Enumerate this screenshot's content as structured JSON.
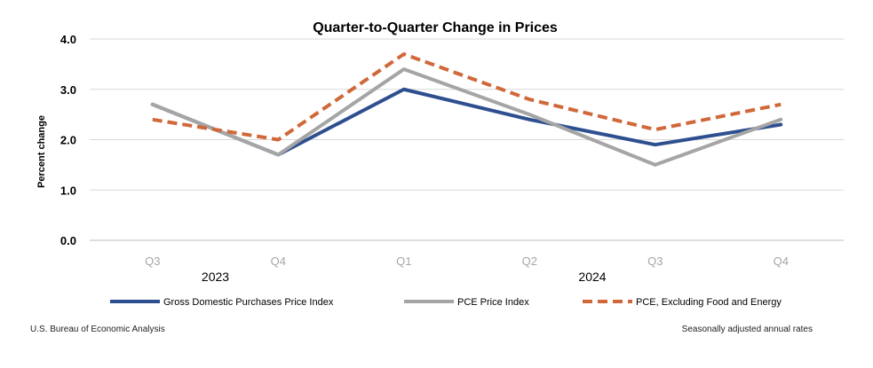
{
  "chart_data": {
    "type": "line",
    "title": "Quarter-to-Quarter Change in Prices",
    "ylabel": "Percent change",
    "xlabel": "",
    "categories": [
      "Q3",
      "Q4",
      "Q1",
      "Q2",
      "Q3",
      "Q4"
    ],
    "year_groups": [
      {
        "label": "2023",
        "start": 0,
        "end": 1
      },
      {
        "label": "2024",
        "start": 2,
        "end": 5
      }
    ],
    "ylim": [
      0,
      4
    ],
    "yticks": [
      "0.0",
      "1.0",
      "2.0",
      "3.0",
      "4.0"
    ],
    "grid": true,
    "legend_position": "bottom",
    "series": [
      {
        "name": "Gross Domestic Purchases Price Index",
        "values": [
          2.7,
          1.7,
          3.0,
          2.4,
          1.9,
          2.3
        ],
        "color": "#2e4f8f",
        "dash": "solid"
      },
      {
        "name": "PCE Price Index",
        "values": [
          2.7,
          1.7,
          3.4,
          2.5,
          1.5,
          2.4
        ],
        "color": "#a5a5a5",
        "dash": "solid"
      },
      {
        "name": "PCE, Excluding Food and Energy",
        "values": [
          2.4,
          2.0,
          3.7,
          2.8,
          2.2,
          2.7
        ],
        "color": "#d0683a",
        "dash": "dashed"
      }
    ]
  },
  "footer": {
    "source": "U.S. Bureau of Economic Analysis",
    "note": "Seasonally adjusted annual rates"
  }
}
